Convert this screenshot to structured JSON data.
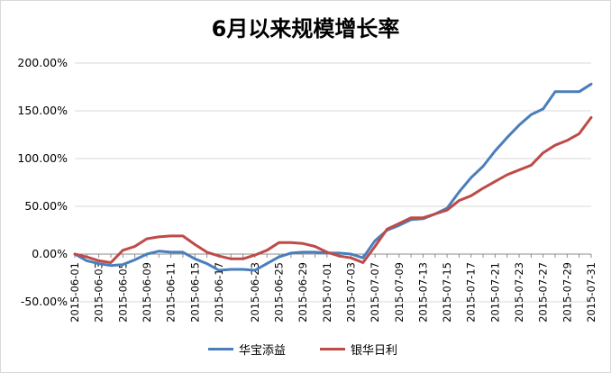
{
  "chart_data": {
    "type": "line",
    "title": "6月以来规模增长率",
    "xlabel": "",
    "ylabel": "",
    "ylim": [
      -0.5,
      2.0
    ],
    "y_ticks": [
      2.0,
      1.5,
      1.0,
      0.5,
      0.0,
      -0.5
    ],
    "y_tick_labels": [
      "200.00%",
      "150.00%",
      "100.00%",
      "50.00%",
      "0.00%",
      "-50.00%"
    ],
    "x": [
      "2015-06-01",
      "2015-06-02",
      "2015-06-03",
      "2015-06-04",
      "2015-06-05",
      "2015-06-08",
      "2015-06-09",
      "2015-06-10",
      "2015-06-11",
      "2015-06-12",
      "2015-06-15",
      "2015-06-16",
      "2015-06-17",
      "2015-06-18",
      "2015-06-19",
      "2015-06-23",
      "2015-06-24",
      "2015-06-25",
      "2015-06-26",
      "2015-06-29",
      "2015-06-30",
      "2015-07-01",
      "2015-07-02",
      "2015-07-03",
      "2015-07-06",
      "2015-07-07",
      "2015-07-08",
      "2015-07-09",
      "2015-07-10",
      "2015-07-13",
      "2015-07-14",
      "2015-07-15",
      "2015-07-16",
      "2015-07-17",
      "2015-07-20",
      "2015-07-21",
      "2015-07-22",
      "2015-07-23",
      "2015-07-24",
      "2015-07-27",
      "2015-07-28",
      "2015-07-29",
      "2015-07-30",
      "2015-07-31"
    ],
    "x_tick_labels": [
      "2015-06-01",
      "2015-06-03",
      "2015-06-05",
      "2015-06-09",
      "2015-06-11",
      "2015-06-15",
      "2015-06-17",
      "2015-06-23",
      "2015-06-25",
      "2015-06-29",
      "2015-07-01",
      "2015-07-03",
      "2015-07-07",
      "2015-07-09",
      "2015-07-13",
      "2015-07-15",
      "2015-07-17",
      "2015-07-21",
      "2015-07-23",
      "2015-07-27",
      "2015-07-29",
      "2015-07-31"
    ],
    "series": [
      {
        "name": "华宝添益",
        "color": "#4a7ebb",
        "values": [
          0.0,
          -0.07,
          -0.1,
          -0.12,
          -0.11,
          -0.06,
          0.0,
          0.03,
          0.02,
          0.02,
          -0.05,
          -0.1,
          -0.17,
          -0.16,
          -0.16,
          -0.17,
          -0.1,
          -0.03,
          0.01,
          0.02,
          0.02,
          0.01,
          0.01,
          0.0,
          -0.04,
          0.14,
          0.25,
          0.3,
          0.36,
          0.37,
          0.42,
          0.48,
          0.65,
          0.8,
          0.92,
          1.08,
          1.22,
          1.35,
          1.46,
          1.52,
          1.7,
          1.7,
          1.7,
          1.78
        ]
      },
      {
        "name": "银华日利",
        "color": "#be4b48",
        "values": [
          0.0,
          -0.03,
          -0.07,
          -0.09,
          0.04,
          0.08,
          0.16,
          0.18,
          0.19,
          0.19,
          0.1,
          0.02,
          -0.02,
          -0.05,
          -0.05,
          -0.01,
          0.04,
          0.12,
          0.12,
          0.11,
          0.08,
          0.02,
          -0.02,
          -0.04,
          -0.09,
          0.08,
          0.26,
          0.32,
          0.38,
          0.38,
          0.42,
          0.46,
          0.56,
          0.61,
          0.69,
          0.76,
          0.83,
          0.88,
          0.93,
          1.06,
          1.14,
          1.19,
          1.26,
          1.43
        ]
      }
    ],
    "grid": true,
    "legend_position": "bottom"
  }
}
